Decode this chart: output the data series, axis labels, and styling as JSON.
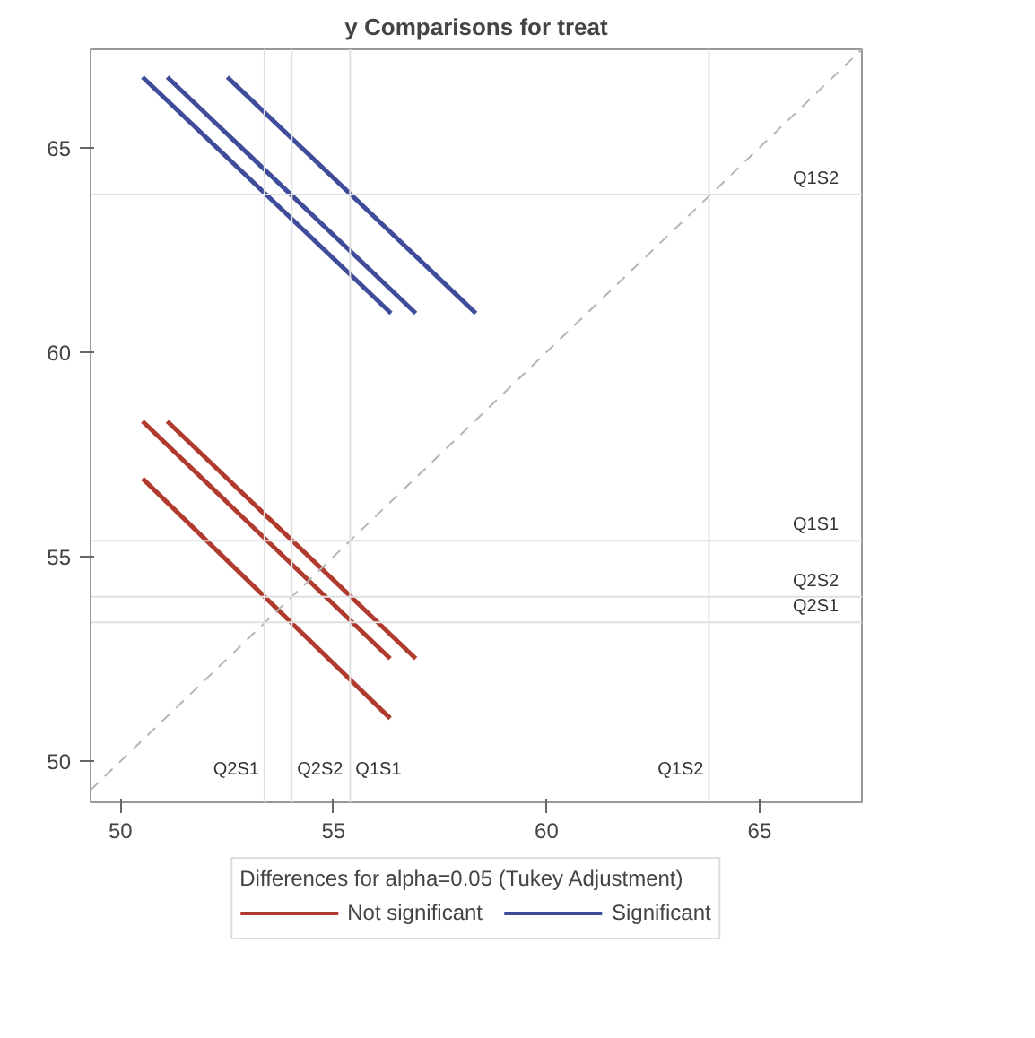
{
  "chart_data": {
    "type": "line",
    "title": "y Comparisons for treat",
    "legend_title": "Differences for alpha=0.05 (Tukey Adjustment)",
    "legend": "bottom",
    "grid": false,
    "line_style": "solid",
    "marker": "none",
    "xlim": [
      49.3,
      67.4
    ],
    "ylim": [
      49.0,
      67.4
    ],
    "xticks": [
      50,
      55,
      60,
      65
    ],
    "yticks": [
      50,
      55,
      60,
      65
    ],
    "series": [
      {
        "name": "Not significant",
        "color": "#b03a2e",
        "x": [
          50.52,
          56.33
        ],
        "values": [
          58.31,
          52.51
        ]
      },
      {
        "color": "#b03a2e",
        "x": [
          51.1,
          56.93
        ],
        "values": [
          58.31,
          52.51
        ]
      },
      {
        "color": "#b03a2e",
        "x": [
          50.52,
          56.33
        ],
        "values": [
          56.91,
          51.05
        ]
      },
      {
        "name": "Significant",
        "color": "#3e4c9a",
        "x": [
          50.52,
          56.35
        ],
        "values": [
          66.72,
          60.95
        ]
      },
      {
        "color": "#3e4c9a",
        "x": [
          51.1,
          56.93
        ],
        "values": [
          66.72,
          60.95
        ]
      },
      {
        "color": "#3e4c9a",
        "x": [
          52.51,
          58.34
        ],
        "values": [
          66.72,
          60.95
        ]
      },
      {
        "color": "#b5b5b5",
        "line_style": "dashed",
        "x": [
          49.3,
          67.4
        ],
        "values": [
          49.3,
          67.4
        ]
      }
    ],
    "ref_lines": [
      {
        "axis": "x",
        "value": 53.38,
        "label": "Q2S1",
        "color": "#e0e0e0"
      },
      {
        "axis": "x",
        "value": 54.02,
        "label": "Q2S2",
        "color": "#e0e0e0"
      },
      {
        "axis": "x",
        "value": 55.39,
        "label": "Q1S1",
        "color": "#e0e0e0"
      },
      {
        "axis": "x",
        "value": 63.81,
        "label": "Q1S2",
        "color": "#e0e0e0"
      },
      {
        "axis": "y",
        "value": 63.85,
        "label": "Q1S2",
        "color": "#e0e0e0"
      },
      {
        "axis": "y",
        "value": 55.39,
        "label": "Q1S1",
        "color": "#e0e0e0"
      },
      {
        "axis": "y",
        "value": 54.02,
        "label": "Q2S2",
        "color": "#e0e0e0"
      },
      {
        "axis": "y",
        "value": 53.4,
        "label": "Q2S1",
        "color": "#e0e0e0"
      }
    ]
  }
}
